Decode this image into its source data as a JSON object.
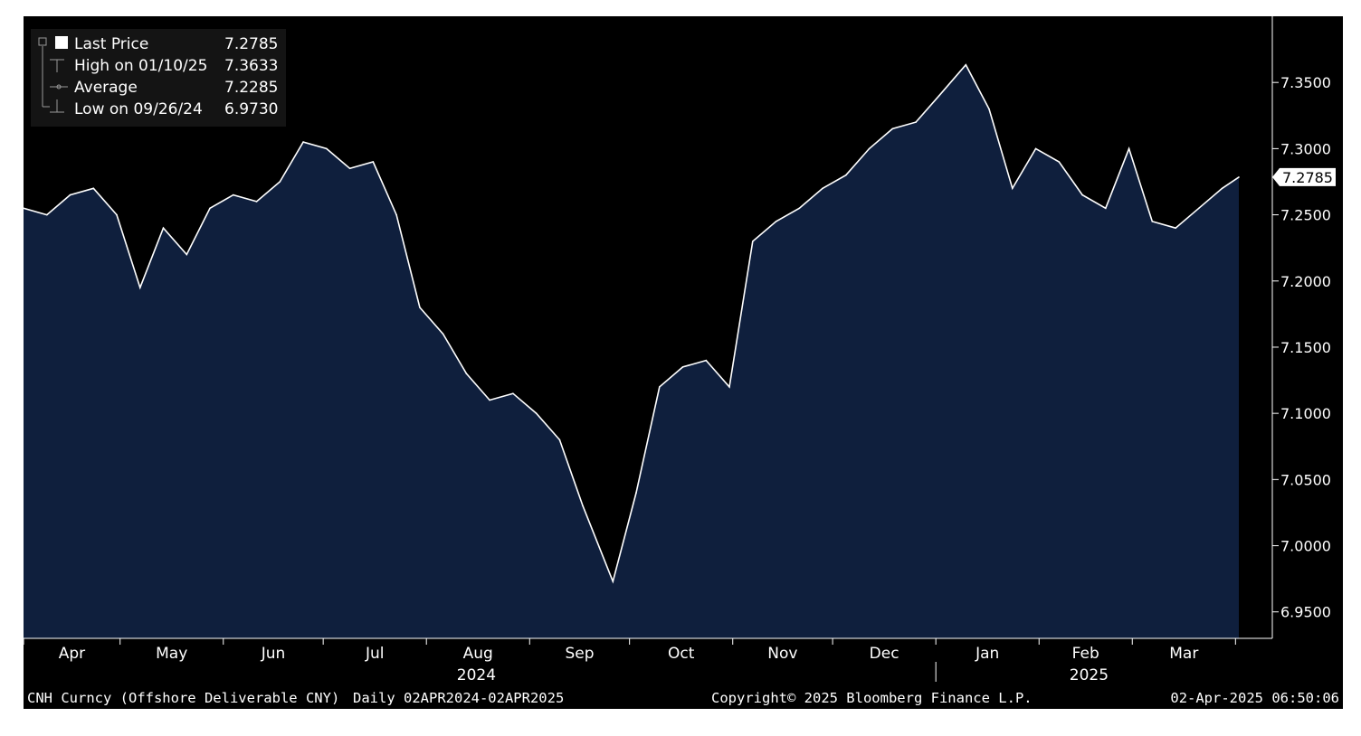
{
  "chart_data": {
    "type": "area",
    "ticker": "CNH Curncy",
    "description": "Offshore Deliverable CNY",
    "frequency": "Daily",
    "range": "02APR2024-02APR2025",
    "y_ticks": [
      "7.3500",
      "7.3000",
      "7.2500",
      "7.2000",
      "7.1500",
      "7.1000",
      "7.0500",
      "7.0000",
      "6.9500"
    ],
    "ylim": [
      6.93,
      7.4
    ],
    "x_months": [
      "Apr",
      "May",
      "Jun",
      "Jul",
      "Aug",
      "Sep",
      "Oct",
      "Nov",
      "Dec",
      "Jan",
      "Feb",
      "Mar"
    ],
    "x_years": [
      "2024",
      "2025"
    ],
    "last_price_marker": "7.2785",
    "colors": {
      "area": "#0f1f3d",
      "line": "#ffffff",
      "background": "#000000"
    },
    "series": [
      {
        "name": "Last Price",
        "dates": [
          "2024-04-02",
          "2024-04-09",
          "2024-04-16",
          "2024-04-23",
          "2024-04-30",
          "2024-05-07",
          "2024-05-14",
          "2024-05-21",
          "2024-05-28",
          "2024-06-04",
          "2024-06-11",
          "2024-06-18",
          "2024-06-25",
          "2024-07-02",
          "2024-07-09",
          "2024-07-16",
          "2024-07-23",
          "2024-07-30",
          "2024-08-06",
          "2024-08-13",
          "2024-08-20",
          "2024-08-27",
          "2024-09-03",
          "2024-09-10",
          "2024-09-17",
          "2024-09-26",
          "2024-10-03",
          "2024-10-10",
          "2024-10-17",
          "2024-10-24",
          "2024-10-31",
          "2024-11-07",
          "2024-11-14",
          "2024-11-21",
          "2024-11-28",
          "2024-12-05",
          "2024-12-12",
          "2024-12-19",
          "2024-12-26",
          "2025-01-02",
          "2025-01-10",
          "2025-01-17",
          "2025-01-24",
          "2025-01-31",
          "2025-02-07",
          "2025-02-14",
          "2025-02-21",
          "2025-02-28",
          "2025-03-07",
          "2025-03-14",
          "2025-03-21",
          "2025-03-28",
          "2025-04-02"
        ],
        "values": [
          7.255,
          7.25,
          7.265,
          7.27,
          7.25,
          7.195,
          7.24,
          7.22,
          7.255,
          7.265,
          7.26,
          7.275,
          7.305,
          7.3,
          7.285,
          7.29,
          7.25,
          7.18,
          7.16,
          7.13,
          7.11,
          7.115,
          7.1,
          7.08,
          7.03,
          6.973,
          7.04,
          7.12,
          7.135,
          7.14,
          7.12,
          7.23,
          7.245,
          7.255,
          7.27,
          7.28,
          7.3,
          7.315,
          7.32,
          7.34,
          7.3633,
          7.33,
          7.27,
          7.3,
          7.29,
          7.265,
          7.255,
          7.3,
          7.245,
          7.24,
          7.255,
          7.27,
          7.2785
        ]
      }
    ],
    "legend": [
      {
        "label": "Last Price",
        "value": "7.2785"
      },
      {
        "label": "High on 01/10/25",
        "value": "7.3633"
      },
      {
        "label": "Average",
        "value": "7.2285"
      },
      {
        "label": "Low on 09/26/24",
        "value": "6.9730"
      }
    ]
  },
  "footer": {
    "security": "CNH Curncy (Offshore Deliverable CNY)",
    "range": "Daily 02APR2024-02APR2025",
    "copyright": "Copyright© 2025 Bloomberg Finance L.P.",
    "timestamp": "02-Apr-2025 06:50:06"
  }
}
